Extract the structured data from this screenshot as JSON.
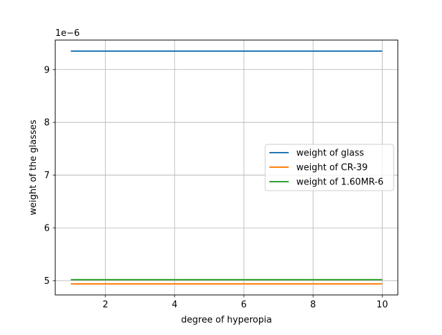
{
  "chart_data": {
    "type": "line",
    "xlabel": "degree of hyperopia",
    "ylabel": "weight of the glasses",
    "offset_text": "1e−6",
    "xlim": [
      0.55,
      10.45
    ],
    "ylim": [
      4.73,
      9.56
    ],
    "x_ticks": [
      2,
      4,
      6,
      8,
      10
    ],
    "y_ticks": [
      5,
      6,
      7,
      8,
      9
    ],
    "x_tick_labels": [
      "2",
      "4",
      "6",
      "8",
      "10"
    ],
    "y_tick_labels": [
      "5",
      "6",
      "7",
      "8",
      "9"
    ],
    "grid": true,
    "legend_position": "center-right",
    "x": [
      1,
      2,
      3,
      4,
      5,
      6,
      7,
      8,
      9,
      10
    ],
    "series": [
      {
        "name": "weight of glass",
        "color": "#1f77b4",
        "values": [
          9.35,
          9.35,
          9.35,
          9.35,
          9.35,
          9.35,
          9.35,
          9.35,
          9.35,
          9.35
        ]
      },
      {
        "name": "weight of CR-39",
        "color": "#ff7f0e",
        "values": [
          4.94,
          4.94,
          4.94,
          4.94,
          4.94,
          4.94,
          4.94,
          4.94,
          4.94,
          4.94
        ]
      },
      {
        "name": "weight of 1.60MR-6",
        "color": "#2ca02c",
        "values": [
          5.02,
          5.02,
          5.02,
          5.02,
          5.02,
          5.02,
          5.02,
          5.02,
          5.02,
          5.02
        ]
      }
    ]
  }
}
